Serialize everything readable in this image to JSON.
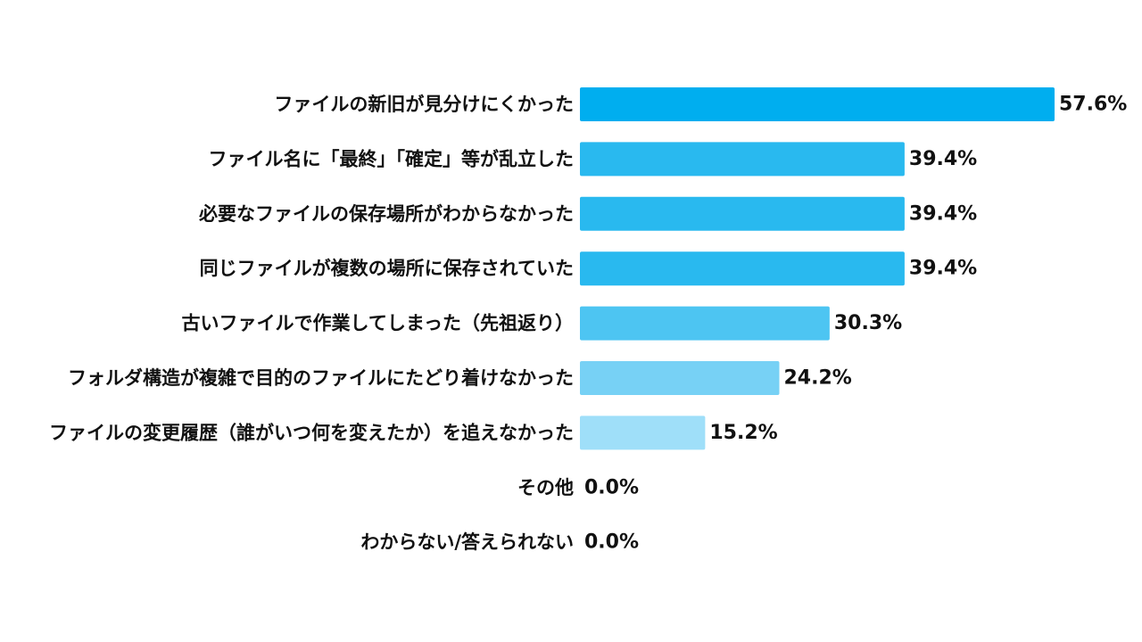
{
  "chart_data": {
    "type": "bar",
    "orientation": "horizontal",
    "categories": [
      "ファイルの新旧が見分けにくかった",
      "ファイル名に「最終」「確定」等が乱立した",
      "必要なファイルの保存場所がわからなかった",
      "同じファイルが複数の場所に保存されていた",
      "古いファイルで作業してしまった（先祖返り）",
      "フォルダ構造が複雑で目的のファイルにたどり着けなかった",
      "ファイルの変更履歴（誰がいつ何を変えたか）を追えなかった",
      "その他",
      "わからない/答えられない"
    ],
    "values": [
      57.6,
      39.4,
      39.4,
      39.4,
      30.3,
      24.2,
      15.2,
      0.0,
      0.0
    ],
    "value_labels": [
      "57.6%",
      "39.4%",
      "39.4%",
      "39.4%",
      "30.3%",
      "24.2%",
      "15.2%",
      "0.0%",
      "0.0%"
    ],
    "colors": [
      "#00aeef",
      "#29b9ef",
      "#29b9ef",
      "#29b9ef",
      "#4dc5f2",
      "#77d1f5",
      "#9fdff9",
      "#9fdff9",
      "#9fdff9"
    ],
    "xlim": [
      0,
      60
    ],
    "grid": false,
    "legend": "none"
  }
}
